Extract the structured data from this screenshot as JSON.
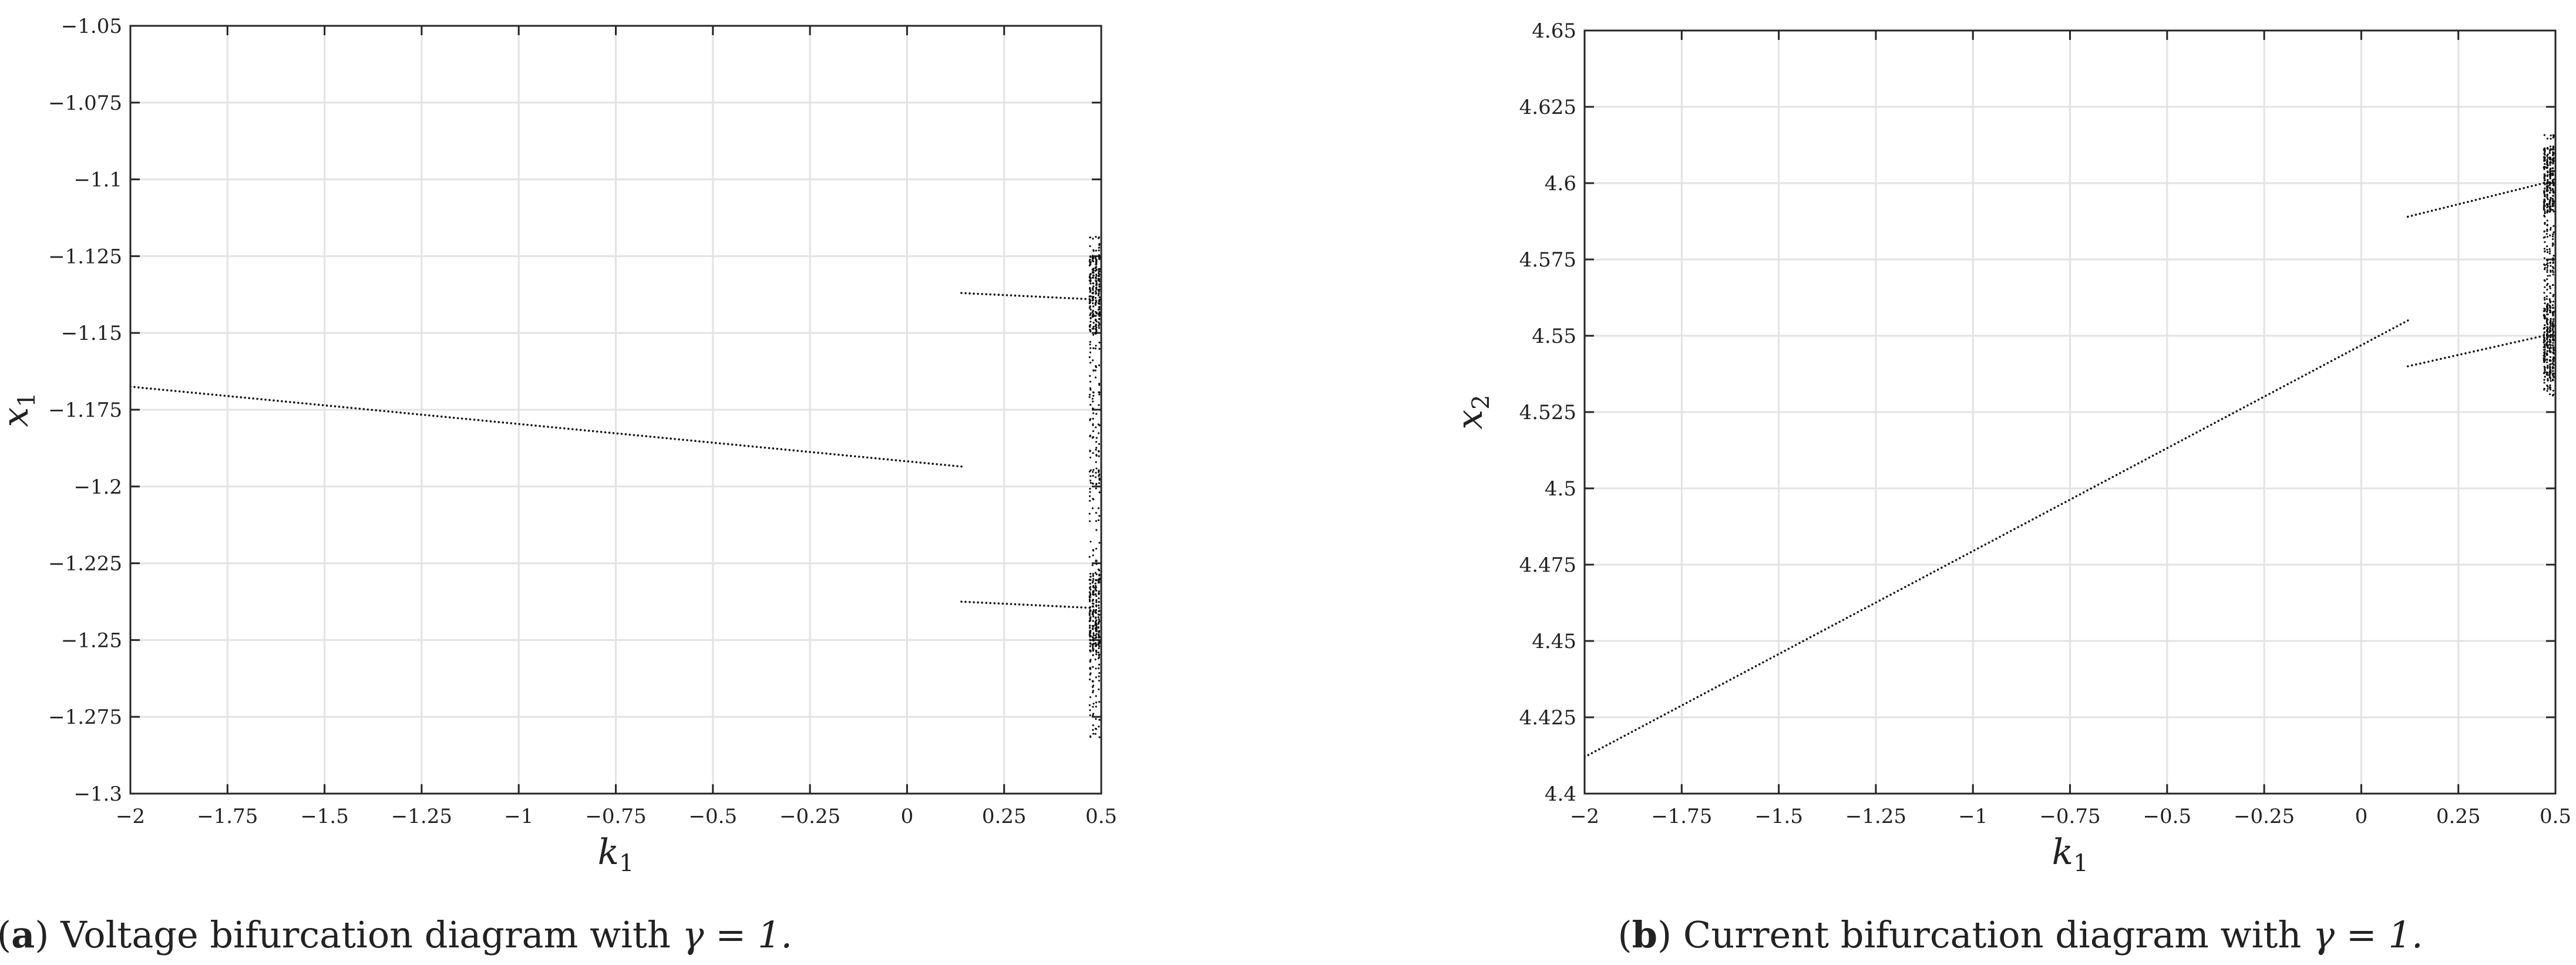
{
  "chart_data": [
    {
      "type": "scatter",
      "title": "",
      "xlabel": "k",
      "xlabel_sub": "1",
      "ylabel": "x",
      "ylabel_sub": "1",
      "xlim": [
        -2,
        0.5
      ],
      "ylim": [
        -1.3,
        -1.05
      ],
      "grid": true,
      "xticks": [
        -2,
        -1.75,
        -1.5,
        -1.25,
        -1,
        -0.75,
        -0.5,
        -0.25,
        0,
        0.25,
        0.5
      ],
      "xtick_labels": [
        "−2",
        "−1.75",
        "−1.5",
        "−1.25",
        "−1",
        "−0.75",
        "−0.5",
        "−0.25",
        "0",
        "0.25",
        "0.5"
      ],
      "yticks": [
        -1.05,
        -1.075,
        -1.1,
        -1.125,
        -1.15,
        -1.175,
        -1.2,
        -1.225,
        -1.25,
        -1.275,
        -1.3
      ],
      "ytick_labels": [
        "−1.05",
        "−1.075",
        "−1.1",
        "−1.125",
        "−1.15",
        "−1.175",
        "−1.2",
        "−1.225",
        "−1.25",
        "−1.275",
        "−1.3"
      ],
      "branches": [
        {
          "x": [
            -2,
            0.14
          ],
          "y": [
            -1.1675,
            -1.1935
          ]
        },
        {
          "x": [
            0.14,
            0.47
          ],
          "y": [
            -1.137,
            -1.139
          ]
        },
        {
          "x": [
            0.14,
            0.47
          ],
          "y": [
            -1.2375,
            -1.2395
          ]
        }
      ],
      "chaotic_band": {
        "x": [
          0.47,
          0.53
        ],
        "y": [
          -1.282,
          -1.118
        ],
        "dense_y": [
          [
            -1.125,
            -1.15
          ],
          [
            -1.228,
            -1.255
          ]
        ]
      },
      "caption": {
        "letter": "a",
        "prefix": "(",
        "suffix": ") Voltage bifurcation diagram with ",
        "math": "γ = 1."
      }
    },
    {
      "type": "scatter",
      "title": "",
      "xlabel": "k",
      "xlabel_sub": "1",
      "ylabel": "x",
      "ylabel_sub": "2",
      "xlim": [
        -2,
        0.5
      ],
      "ylim": [
        4.4,
        4.65
      ],
      "grid": true,
      "xticks": [
        -2,
        -1.75,
        -1.5,
        -1.25,
        -1,
        -0.75,
        -0.5,
        -0.25,
        0,
        0.25,
        0.5
      ],
      "xtick_labels": [
        "−2",
        "−1.75",
        "−1.5",
        "−1.25",
        "−1",
        "−0.75",
        "−0.5",
        "−0.25",
        "0",
        "0.25",
        "0.5"
      ],
      "yticks": [
        4.65,
        4.625,
        4.6,
        4.575,
        4.55,
        4.525,
        4.5,
        4.475,
        4.45,
        4.425,
        4.4
      ],
      "ytick_labels": [
        "4.65",
        "4.625",
        "4.6",
        "4.575",
        "4.55",
        "4.525",
        "4.5",
        "4.475",
        "4.45",
        "4.425",
        "4.4"
      ],
      "branches": [
        {
          "x": [
            -2,
            0.12
          ],
          "y": [
            4.412,
            4.555
          ]
        },
        {
          "x": [
            0.12,
            0.47
          ],
          "y": [
            4.589,
            4.6
          ]
        },
        {
          "x": [
            0.12,
            0.47
          ],
          "y": [
            4.54,
            4.55
          ]
        }
      ],
      "chaotic_band": {
        "x": [
          0.47,
          0.53
        ],
        "y": [
          4.53,
          4.616
        ],
        "dense_y": [
          [
            4.59,
            4.612
          ],
          [
            4.535,
            4.56
          ]
        ]
      },
      "caption": {
        "letter": "b",
        "prefix": "(",
        "suffix": ") Current bifurcation diagram with ",
        "math": "γ = 1."
      }
    }
  ]
}
